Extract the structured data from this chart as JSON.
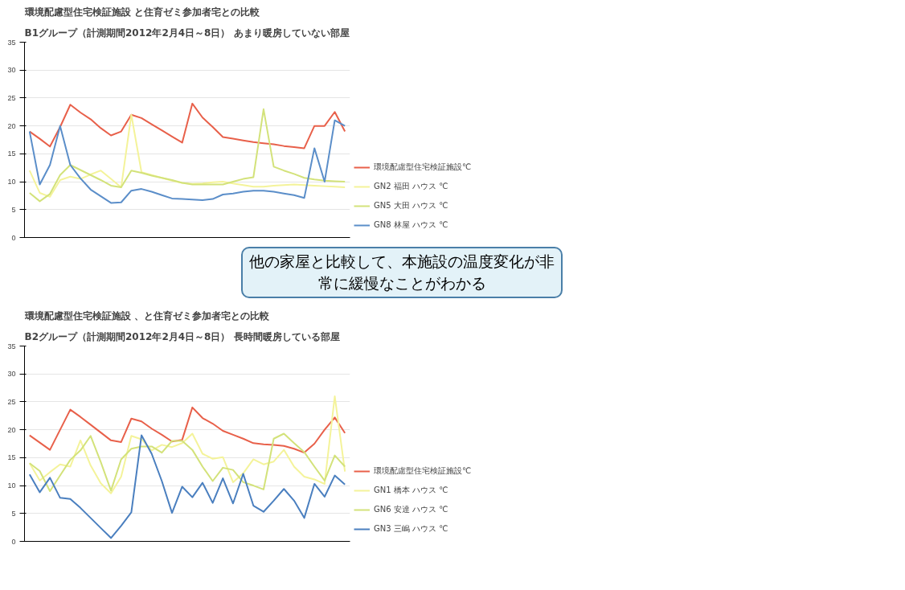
{
  "chart_data": [
    {
      "type": "line",
      "title": "環境配慮型住宅検証施設 と住育ゼミ参加者宅との比較",
      "subtitle": "B1グループ（計測期間2012年2月4日～8日） あまり暖房していない部屋",
      "categories": [
        null,
        null,
        null,
        null,
        null,
        null,
        null,
        null,
        null,
        null,
        null,
        null,
        null,
        null,
        null,
        null,
        null,
        null,
        null,
        null,
        null,
        null,
        null,
        null,
        null,
        null,
        null,
        null,
        null,
        null,
        null,
        null
      ],
      "ylim": [
        0,
        35
      ],
      "yticks": [
        0,
        5,
        10,
        15,
        20,
        25,
        30,
        35
      ],
      "grid": "y",
      "legend": "right",
      "marker": "none",
      "line_style": "solid",
      "annotations": [
        "他の家屋と比較して、本施設の温度変化が非常に緩慢なことがわかる"
      ],
      "series": [
        {
          "name": "環境配慮型住宅検証施設℃",
          "color": "#e8604a",
          "values": [
            19,
            17.7,
            16.3,
            19.8,
            23.8,
            22.4,
            21.2,
            19.6,
            18.3,
            19,
            22,
            21.4,
            20.3,
            19.2,
            18.1,
            17,
            24,
            21.5,
            19.8,
            18,
            17.7,
            17.4,
            17.1,
            16.9,
            16.7,
            16.4,
            16.2,
            16,
            20,
            20,
            22.5,
            19
          ]
        },
        {
          "name": "GN2 福田 ハウス ℃",
          "color": "#f4f39a",
          "values": [
            12,
            8,
            7.3,
            10.3,
            10.9,
            10.5,
            11.3,
            12,
            10.5,
            9,
            22,
            11.7,
            11.2,
            10.7,
            10.2,
            9.8,
            9.6,
            9.7,
            9.9,
            10,
            9.7,
            9.4,
            9.1,
            9.1,
            9.3,
            9.4,
            9.5,
            9.4,
            9.3,
            9.2,
            9.1,
            9
          ]
        },
        {
          "name": "GN5 大田 ハウス ℃",
          "color": "#d3e27a",
          "values": [
            8,
            6.5,
            7.8,
            11.2,
            13,
            12.1,
            11.2,
            10.3,
            9.3,
            9,
            12,
            11.6,
            11.1,
            10.7,
            10.3,
            9.8,
            9.5,
            9.5,
            9.5,
            9.5,
            10,
            10.5,
            10.8,
            23,
            12.7,
            12,
            11.4,
            10.7,
            10.4,
            10.2,
            10.1,
            10
          ]
        },
        {
          "name": "GN8 林屋 ハウス ℃",
          "color": "#5b8ec9",
          "values": [
            19,
            9.5,
            13,
            20,
            13,
            10.6,
            8.6,
            7.4,
            6.2,
            6.3,
            8.4,
            8.7,
            8.2,
            7.6,
            7,
            6.9,
            6.8,
            6.7,
            6.9,
            7.7,
            7.9,
            8.2,
            8.4,
            8.4,
            8.2,
            7.9,
            7.6,
            7.1,
            16,
            10,
            21,
            20
          ]
        }
      ]
    },
    {
      "type": "line",
      "title": "環境配慮型住宅検証施設 、と住育ゼミ参加者宅との比較",
      "subtitle": "B2グループ（計測期間2012年2月4日～8日） 長時間暖房している部屋",
      "categories": [
        null,
        null,
        null,
        null,
        null,
        null,
        null,
        null,
        null,
        null,
        null,
        null,
        null,
        null,
        null,
        null,
        null,
        null,
        null,
        null,
        null,
        null,
        null,
        null,
        null,
        null,
        null,
        null,
        null,
        null,
        null,
        null
      ],
      "ylim": [
        0,
        35
      ],
      "yticks": [
        0,
        5,
        10,
        15,
        20,
        25,
        30,
        35
      ],
      "grid": "y",
      "legend": "right",
      "marker": "none",
      "line_style": "solid",
      "series": [
        {
          "name": "環境配慮型住宅検証施設℃",
          "color": "#e8604a",
          "values": [
            19,
            17.7,
            16.4,
            20,
            23.6,
            22.3,
            20.9,
            19.5,
            18.1,
            17.8,
            22,
            21.5,
            20.2,
            19.1,
            17.9,
            18.2,
            24,
            22.1,
            21.1,
            19.8,
            19.1,
            18.4,
            17.6,
            17.4,
            17.3,
            17.1,
            16.6,
            15.9,
            17.5,
            20,
            22.2,
            19.4
          ]
        },
        {
          "name": "GN1 橋本 ハウス ℃",
          "color": "#f4f39a",
          "values": [
            14,
            10.9,
            12.4,
            13.8,
            13.4,
            18.1,
            13.6,
            10.4,
            8.6,
            11.6,
            18.9,
            18.3,
            16.3,
            17.3,
            16.9,
            17.6,
            19.3,
            15.7,
            14.8,
            15.1,
            10.6,
            12.2,
            14.7,
            13.8,
            14.3,
            16.4,
            13.4,
            11.6,
            11.1,
            10.3,
            26,
            12.5
          ]
        },
        {
          "name": "GN6 安達 ハウス ℃",
          "color": "#d3e27a",
          "values": [
            14,
            12.6,
            9,
            11.8,
            14.6,
            16.3,
            18.9,
            14.2,
            9.1,
            14.7,
            16.6,
            17,
            17,
            15.9,
            18,
            18,
            16.4,
            13.4,
            10.8,
            13.2,
            12.8,
            10.6,
            10,
            9.3,
            18.4,
            19.3,
            17.6,
            16,
            13.4,
            10.9,
            15.4,
            13.4
          ]
        },
        {
          "name": "GN3 三嶋 ハウス ℃",
          "color": "#4a7fbf",
          "values": [
            12,
            8.8,
            11.4,
            7.8,
            7.6,
            6,
            4.2,
            2.4,
            0.6,
            2.8,
            5.2,
            19,
            15.7,
            10.8,
            5.1,
            9.8,
            7.9,
            10.5,
            6.9,
            11.3,
            6.8,
            12.1,
            6.4,
            5.3,
            7.3,
            9.4,
            7.3,
            4.2,
            10.3,
            8,
            11.8,
            10.2
          ]
        }
      ]
    }
  ]
}
